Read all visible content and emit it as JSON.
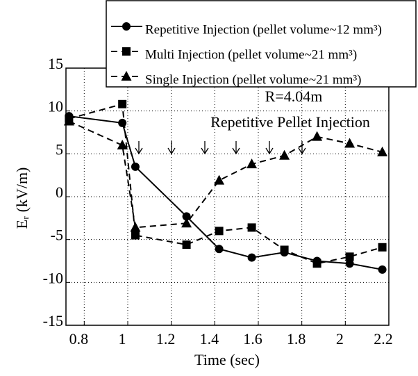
{
  "chart_data": {
    "type": "line",
    "x_label": "Time (sec)",
    "y_label": "Eᵣ (kV/m)",
    "annotations": [
      "R=4.04m",
      "Repetitive Pellet Injection"
    ],
    "x": [
      0.73,
      0.975,
      1.035,
      1.27,
      1.42,
      1.57,
      1.72,
      1.87,
      2.02,
      2.17
    ],
    "series": [
      {
        "name": "Repetitive Injection (pellet volume~12 mm³)",
        "color": "#000000",
        "marker": "circle",
        "dash": false,
        "values": [
          9.4,
          8.6,
          3.5,
          -2.3,
          -6.1,
          -7.1,
          -6.5,
          -7.5,
          -7.8,
          -8.5
        ]
      },
      {
        "name": "Multi Injection (pellet volume~21 mm³)",
        "color": "#000000",
        "marker": "square",
        "dash": true,
        "values": [
          9.1,
          10.8,
          -4.5,
          -5.6,
          -4.0,
          -3.6,
          -6.2,
          -7.8,
          -7.0,
          -5.9
        ]
      },
      {
        "name": "Single Injection (pellet volume~21 mm³)",
        "color": "#000000",
        "marker": "triangle",
        "dash": true,
        "values": [
          8.8,
          6.0,
          -3.6,
          -3.1,
          1.9,
          3.8,
          4.8,
          7.0,
          6.2,
          5.2
        ]
      }
    ],
    "xlim": [
      0.716,
      2.2
    ],
    "xticks": [
      0.8,
      1,
      1.2,
      1.4,
      1.6,
      1.8,
      2,
      2.2
    ],
    "ylim": [
      -15,
      15
    ],
    "yticks": [
      -15,
      -10,
      -5,
      0,
      5,
      10,
      15
    ],
    "grid": true,
    "legend": "top right"
  }
}
